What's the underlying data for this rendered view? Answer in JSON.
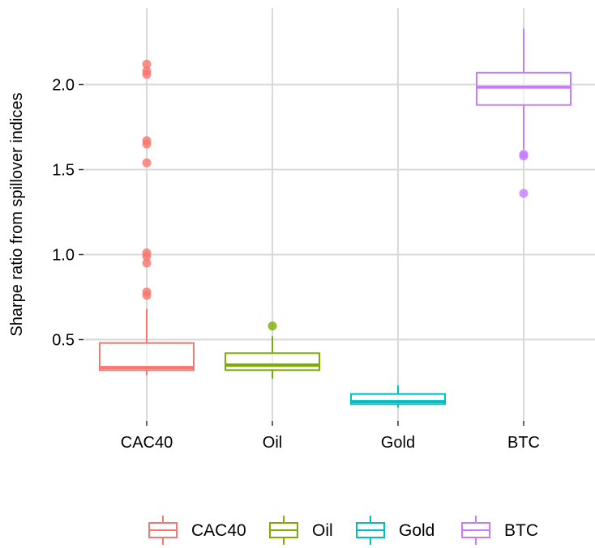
{
  "chart_data": {
    "type": "boxplot",
    "title": "",
    "xlabel": "",
    "ylabel": "Sharpe ratio from spillover indices",
    "ylim": [
      0.0,
      2.4
    ],
    "y_ticks": [
      0.5,
      1.0,
      1.5,
      2.0
    ],
    "y_tick_labels": [
      "0.5",
      "1.0",
      "1.5",
      "2.0"
    ],
    "grid": true,
    "legend_position": "bottom",
    "categories": [
      "CAC40",
      "Oil",
      "Gold",
      "BTC"
    ],
    "series": [
      {
        "name": "CAC40",
        "color": "#F8766D",
        "whisker_low": 0.29,
        "q1": 0.32,
        "median": 0.335,
        "q3": 0.48,
        "whisker_high": 0.68,
        "outliers": [
          2.12,
          2.08,
          2.06,
          1.67,
          1.65,
          1.54,
          1.01,
          0.99,
          0.95,
          0.78,
          0.76
        ]
      },
      {
        "name": "Oil",
        "color": "#7CAE00",
        "whisker_low": 0.27,
        "q1": 0.32,
        "median": 0.35,
        "q3": 0.42,
        "whisker_high": 0.52,
        "outliers": [
          0.58
        ]
      },
      {
        "name": "Gold",
        "color": "#00BFC4",
        "whisker_low": 0.1,
        "q1": 0.12,
        "median": 0.135,
        "q3": 0.18,
        "whisker_high": 0.23,
        "outliers": []
      },
      {
        "name": "BTC",
        "color": "#C77CFF",
        "whisker_low": 1.62,
        "q1": 1.88,
        "median": 1.985,
        "q3": 2.07,
        "whisker_high": 2.33,
        "outliers": [
          1.59,
          1.58,
          1.36
        ]
      }
    ]
  }
}
